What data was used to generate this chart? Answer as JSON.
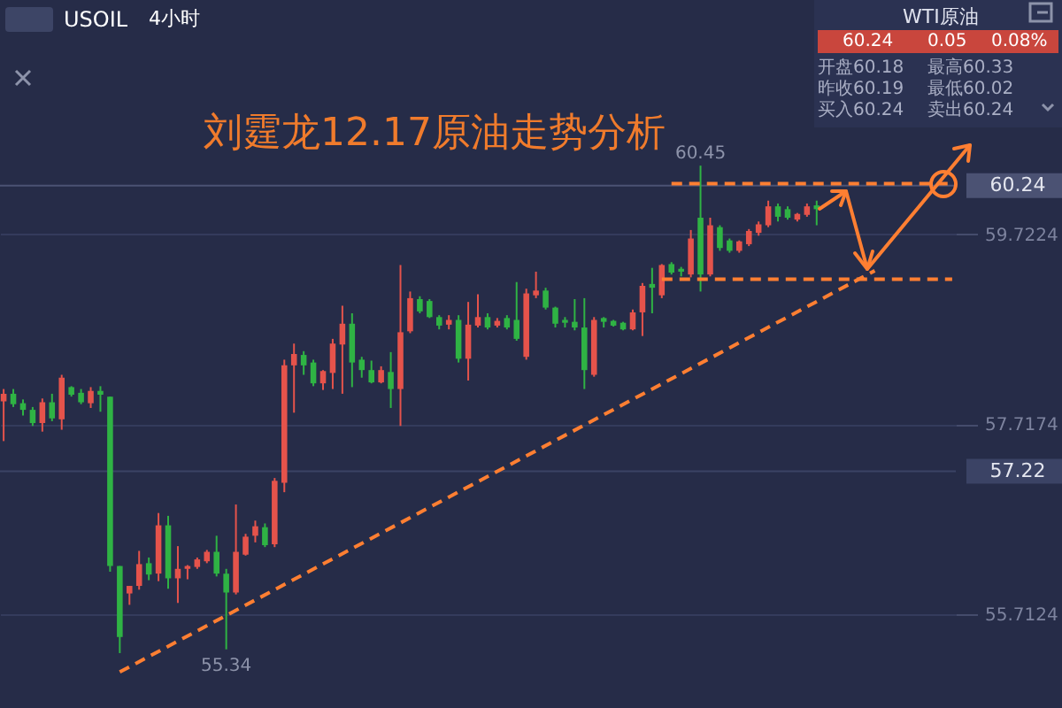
{
  "chart_data": {
    "type": "candlestick",
    "title": "刘霆龙12.17原油走势分析",
    "categories": [
      null,
      null,
      null,
      null,
      null,
      null,
      null,
      null,
      null,
      null,
      null,
      null,
      null,
      null,
      null,
      null,
      null,
      null,
      null,
      null,
      null,
      null,
      null,
      null,
      null,
      null,
      null,
      null,
      null,
      null,
      null,
      null,
      null,
      null,
      null,
      null,
      null,
      null,
      null,
      null,
      null,
      null,
      null,
      null,
      null,
      null,
      null,
      null,
      null,
      null,
      null,
      null,
      null,
      null,
      null,
      null,
      null,
      null,
      null,
      null,
      null,
      null,
      null,
      null,
      null,
      null,
      null,
      null,
      null,
      null,
      null,
      null,
      null,
      null,
      null,
      null,
      null,
      null,
      null,
      null,
      null,
      null,
      null,
      null,
      null,
      null,
      null,
      null,
      null,
      null,
      null,
      null,
      null,
      null,
      null,
      null,
      null,
      null,
      null
    ],
    "ohlc": [
      [
        57.96,
        58.09,
        57.54,
        58.04
      ],
      [
        58.04,
        58.09,
        57.9,
        57.93
      ],
      [
        57.94,
        57.98,
        57.81,
        57.87
      ],
      [
        57.87,
        57.9,
        57.7,
        57.73
      ],
      [
        57.73,
        57.99,
        57.64,
        57.95
      ],
      [
        57.95,
        58.04,
        57.75,
        57.78
      ],
      [
        57.77,
        58.24,
        57.66,
        58.21
      ],
      [
        58.11,
        58.12,
        58.01,
        58.03
      ],
      [
        58.05,
        58.09,
        57.93,
        57.95
      ],
      [
        57.94,
        58.11,
        57.89,
        58.07
      ],
      [
        58.07,
        58.12,
        57.85,
        58.03
      ],
      [
        58.01,
        58.01,
        56.16,
        56.22
      ],
      [
        56.22,
        56.22,
        55.3,
        55.47
      ],
      [
        55.93,
        56.01,
        55.81,
        56.01
      ],
      [
        56.01,
        56.38,
        55.97,
        56.24
      ],
      [
        56.25,
        56.31,
        56.07,
        56.13
      ],
      [
        56.14,
        56.78,
        56.06,
        56.65
      ],
      [
        56.65,
        56.75,
        55.98,
        56.09
      ],
      [
        56.09,
        56.43,
        55.83,
        56.19
      ],
      [
        56.19,
        56.23,
        56.08,
        56.22
      ],
      [
        56.21,
        56.31,
        56.19,
        56.29
      ],
      [
        56.27,
        56.39,
        56.25,
        56.37
      ],
      [
        56.37,
        56.54,
        56.11,
        56.14
      ],
      [
        56.14,
        56.19,
        55.34,
        55.94
      ],
      [
        55.94,
        56.87,
        55.92,
        56.37
      ],
      [
        56.34,
        56.56,
        56.33,
        56.53
      ],
      [
        56.54,
        56.7,
        56.47,
        56.64
      ],
      [
        56.63,
        56.67,
        56.42,
        56.44
      ],
      [
        56.45,
        57.15,
        56.42,
        57.12
      ],
      [
        57.1,
        58.4,
        57.0,
        58.34
      ],
      [
        58.34,
        58.57,
        57.84,
        58.46
      ],
      [
        58.45,
        58.49,
        58.24,
        58.34
      ],
      [
        58.37,
        58.4,
        58.12,
        58.15
      ],
      [
        58.15,
        58.29,
        58.08,
        58.28
      ],
      [
        58.26,
        58.62,
        58.09,
        58.57
      ],
      [
        58.56,
        58.97,
        58.04,
        58.78
      ],
      [
        58.78,
        58.89,
        58.11,
        58.37
      ],
      [
        58.4,
        58.43,
        58.21,
        58.29
      ],
      [
        58.29,
        58.39,
        58.15,
        58.16
      ],
      [
        58.16,
        58.33,
        58.15,
        58.29
      ],
      [
        58.27,
        58.48,
        57.89,
        58.09
      ],
      [
        58.09,
        59.4,
        57.7,
        58.69
      ],
      [
        58.7,
        59.12,
        58.68,
        59.05
      ],
      [
        59.04,
        59.07,
        58.89,
        58.91
      ],
      [
        59.02,
        59.04,
        58.84,
        58.85
      ],
      [
        58.85,
        58.87,
        58.72,
        58.76
      ],
      [
        58.77,
        58.87,
        58.72,
        58.82
      ],
      [
        58.82,
        58.87,
        58.37,
        58.41
      ],
      [
        58.41,
        59.01,
        58.18,
        58.77
      ],
      [
        58.76,
        59.09,
        58.74,
        58.85
      ],
      [
        58.85,
        58.89,
        58.72,
        58.74
      ],
      [
        58.76,
        58.84,
        58.74,
        58.81
      ],
      [
        58.84,
        58.87,
        58.72,
        58.74
      ],
      [
        58.82,
        59.22,
        58.6,
        58.62
      ],
      [
        58.43,
        59.15,
        58.4,
        59.1
      ],
      [
        59.08,
        59.33,
        59.05,
        59.13
      ],
      [
        59.13,
        59.16,
        58.93,
        58.95
      ],
      [
        58.95,
        58.96,
        58.74,
        58.78
      ],
      [
        58.82,
        58.85,
        58.74,
        58.79
      ],
      [
        58.8,
        59.04,
        58.71,
        58.74
      ],
      [
        58.74,
        59.05,
        58.09,
        58.29
      ],
      [
        58.24,
        58.85,
        58.22,
        58.82
      ],
      [
        58.84,
        58.85,
        58.74,
        58.8
      ],
      [
        58.81,
        58.82,
        58.75,
        58.76
      ],
      [
        58.79,
        58.8,
        58.71,
        58.72
      ],
      [
        58.72,
        58.93,
        58.71,
        58.9
      ],
      [
        58.9,
        59.21,
        58.65,
        59.18
      ],
      [
        59.2,
        59.37,
        58.89,
        59.16
      ],
      [
        59.08,
        59.41,
        59.05,
        59.4
      ],
      [
        59.41,
        59.43,
        59.3,
        59.32
      ],
      [
        59.36,
        59.38,
        59.28,
        59.33
      ],
      [
        59.3,
        59.77,
        59.27,
        59.68
      ],
      [
        59.9,
        60.45,
        59.12,
        59.3
      ],
      [
        59.3,
        59.9,
        59.28,
        59.82
      ],
      [
        59.8,
        59.82,
        59.55,
        59.58
      ],
      [
        59.66,
        59.68,
        59.53,
        59.55
      ],
      [
        59.55,
        59.66,
        59.53,
        59.65
      ],
      [
        59.62,
        59.78,
        59.6,
        59.76
      ],
      [
        59.74,
        59.86,
        59.71,
        59.83
      ],
      [
        59.82,
        60.08,
        59.8,
        60.02
      ],
      [
        60.02,
        60.05,
        59.86,
        59.91
      ],
      [
        59.99,
        60.02,
        59.88,
        59.9
      ],
      [
        59.88,
        59.95,
        59.86,
        59.94
      ],
      [
        59.93,
        60.05,
        59.91,
        60.02
      ],
      [
        60.03,
        60.08,
        59.82,
        59.99
      ],
      null,
      null,
      null,
      null,
      null,
      null,
      null,
      null,
      null,
      null,
      null,
      null,
      null,
      null
    ],
    "colors": [
      "#e5534b",
      "#2fb344",
      "#2fb344",
      "#2fb344",
      "#e5534b",
      "#2fb344",
      "#e5534b",
      "#2fb344",
      "#2fb344",
      "#e5534b",
      "#2fb344",
      "#2fb344",
      "#2fb344",
      "#e5534b",
      "#e5534b",
      "#2fb344",
      "#e5534b",
      "#2fb344",
      "#e5534b",
      "#e5534b",
      "#e5534b",
      "#e5534b",
      "#2fb344",
      "#2fb344",
      "#e5534b",
      "#e5534b",
      "#e5534b",
      "#2fb344",
      "#e5534b",
      "#e5534b",
      "#e5534b",
      "#2fb344",
      "#2fb344",
      "#e5534b",
      "#e5534b",
      "#e5534b",
      "#2fb344",
      "#2fb344",
      "#2fb344",
      "#e5534b",
      "#2fb344",
      "#e5534b",
      "#e5534b",
      "#2fb344",
      "#2fb344",
      "#2fb344",
      "#e5534b",
      "#2fb344",
      "#e5534b",
      "#e5534b",
      "#2fb344",
      "#e5534b",
      "#2fb344",
      "#2fb344",
      "#e5534b",
      "#e5534b",
      "#2fb344",
      "#2fb344",
      "#2fb344",
      "#2fb344",
      "#2fb344",
      "#e5534b",
      "#2fb344",
      "#2fb344",
      "#2fb344",
      "#e5534b",
      "#e5534b",
      "#2fb344",
      "#e5534b",
      "#2fb344",
      "#2fb344",
      "#e5534b",
      "#2fb344",
      "#e5534b",
      "#2fb344",
      "#2fb344",
      "#e5534b",
      "#e5534b",
      "#e5534b",
      "#e5534b",
      "#2fb344",
      "#2fb344",
      "#e5534b",
      "#e5534b",
      "#2fb344",
      null,
      null,
      null,
      null,
      null,
      null,
      null,
      null,
      null,
      null,
      null,
      null,
      null,
      null
    ],
    "series": [
      {
        "type": "line",
        "color": "#ff7f32",
        "line_style": "dashed",
        "values": [
          null,
          null,
          null,
          null,
          null,
          null,
          null,
          null,
          null,
          null,
          null,
          null,
          55.1,
          null,
          null,
          null,
          null,
          null,
          null,
          null,
          null,
          null,
          null,
          null,
          null,
          null,
          null,
          null,
          null,
          null,
          null,
          null,
          null,
          null,
          null,
          null,
          null,
          null,
          null,
          null,
          null,
          null,
          null,
          null,
          null,
          null,
          null,
          null,
          null,
          null,
          null,
          null,
          null,
          null,
          null,
          null,
          null,
          null,
          null,
          null,
          null,
          null,
          null,
          null,
          null,
          null,
          null,
          null,
          null,
          null,
          null,
          null,
          null,
          null,
          null,
          null,
          null,
          null,
          null,
          null,
          null,
          null,
          null,
          null,
          null,
          null,
          null,
          null,
          null,
          null,
          59.34,
          null,
          null,
          null,
          null,
          null,
          null,
          null,
          null
        ]
      },
      {
        "type": "line",
        "color": "#ff7f32",
        "line_style": "dashed",
        "values": [
          null,
          null,
          null,
          null,
          null,
          null,
          null,
          null,
          null,
          null,
          null,
          null,
          null,
          null,
          null,
          null,
          null,
          null,
          null,
          null,
          null,
          null,
          null,
          null,
          null,
          null,
          null,
          null,
          null,
          null,
          null,
          null,
          null,
          null,
          null,
          null,
          null,
          null,
          null,
          null,
          null,
          null,
          null,
          null,
          null,
          null,
          null,
          null,
          null,
          null,
          null,
          null,
          null,
          null,
          null,
          null,
          null,
          null,
          null,
          null,
          null,
          null,
          null,
          null,
          null,
          null,
          null,
          null,
          null,
          60.26,
          null,
          null,
          null,
          null,
          null,
          null,
          null,
          null,
          null,
          null,
          null,
          null,
          null,
          null,
          null,
          null,
          null,
          null,
          null,
          null,
          null,
          null,
          null,
          null,
          null,
          null,
          null,
          null,
          60.26
        ]
      },
      {
        "type": "line",
        "color": "#ff7f32",
        "line_style": "dashed",
        "values": [
          null,
          null,
          null,
          null,
          null,
          null,
          null,
          null,
          null,
          null,
          null,
          null,
          null,
          null,
          null,
          null,
          null,
          null,
          null,
          null,
          null,
          null,
          null,
          null,
          null,
          null,
          null,
          null,
          null,
          null,
          null,
          null,
          null,
          null,
          null,
          null,
          null,
          null,
          null,
          null,
          null,
          null,
          null,
          null,
          null,
          null,
          null,
          null,
          null,
          null,
          null,
          null,
          null,
          null,
          null,
          null,
          null,
          null,
          null,
          null,
          null,
          null,
          null,
          null,
          null,
          null,
          null,
          null,
          59.25,
          null,
          null,
          null,
          null,
          null,
          null,
          null,
          null,
          null,
          null,
          null,
          null,
          null,
          null,
          null,
          null,
          null,
          null,
          null,
          null,
          null,
          null,
          null,
          null,
          null,
          null,
          null,
          null,
          null,
          59.25
        ]
      }
    ],
    "ylim": [
      54.72,
      62.2
    ],
    "yticks": [
      55.7124,
      57.7174,
      59.7224
    ],
    "grid": "y",
    "ref_lines": [
      {
        "axis": "y",
        "value": 60.24,
        "label": "60.24",
        "color": "#4b5273"
      },
      {
        "axis": "y",
        "value": 57.22,
        "label": "57.22",
        "color": "#3b4365"
      }
    ],
    "annotations": [
      "USOIL",
      "4小时",
      "WTI原油",
      "60.24",
      "0.05",
      "0.08%",
      "开盘",
      "60.18",
      "最高",
      "60.33",
      "昨收",
      "60.19",
      "最低",
      "60.02",
      "买入",
      "60.24",
      "卖出",
      "60.24",
      {
        "text": "60.45",
        "y": 60.45
      },
      {
        "text": "55.34",
        "y": 55.34
      }
    ]
  }
}
